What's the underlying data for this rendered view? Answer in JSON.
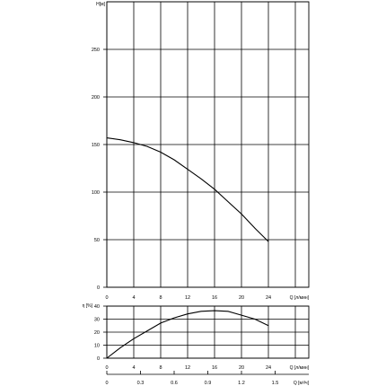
{
  "chart_data": [
    {
      "type": "line",
      "title": "",
      "ylabel": "H[м]",
      "xlabel": "Q [л/мин]",
      "x_ticks": [
        "0",
        "4",
        "8",
        "12",
        "16",
        "20",
        "24"
      ],
      "y_ticks": [
        "0",
        "50",
        "100",
        "150",
        "200",
        "250"
      ],
      "xlim": [
        0,
        30
      ],
      "ylim": [
        0,
        300
      ],
      "grid": true,
      "series": [
        {
          "x": [
            0,
            2,
            4,
            6,
            8,
            10,
            12,
            14,
            16,
            18,
            20,
            22,
            24
          ],
          "y": [
            157,
            155,
            152,
            148,
            142,
            134,
            124,
            114,
            103,
            90,
            77,
            62,
            48
          ]
        }
      ]
    },
    {
      "type": "line",
      "title": "",
      "ylabel": "η [%]",
      "xlabel": "Q [л/мин]",
      "x_ticks": [
        "0",
        "4",
        "8",
        "12",
        "16",
        "20",
        "24"
      ],
      "y_ticks": [
        "0",
        "10",
        "20",
        "30",
        "40"
      ],
      "xlim": [
        0,
        30
      ],
      "ylim": [
        0,
        40
      ],
      "grid": true,
      "series": [
        {
          "x": [
            0,
            2,
            4,
            6,
            8,
            10,
            12,
            14,
            16,
            18,
            20,
            22,
            24
          ],
          "y": [
            0,
            8,
            15,
            21,
            27,
            31,
            34,
            36,
            36.5,
            36,
            33,
            30,
            25
          ]
        }
      ]
    },
    {
      "type": "axis",
      "xlabel": "Q [м³/ч]",
      "x_ticks": [
        "0",
        "0.3",
        "0.6",
        "0.9",
        "1.2",
        "1.5"
      ]
    }
  ]
}
